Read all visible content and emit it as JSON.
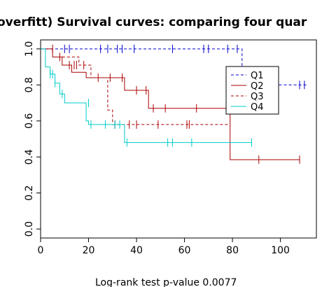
{
  "chart_data": {
    "type": "line",
    "title": "overfitt) Survival curves: comparing four quar",
    "xlabel": "",
    "ylabel": "",
    "footnote": "Log-rank test p-value  0.0077",
    "xlim": [
      0,
      115
    ],
    "ylim": [
      -0.05,
      1.05
    ],
    "x_ticks": [
      0,
      20,
      40,
      60,
      80,
      100
    ],
    "y_ticks": [
      0.0,
      0.2,
      0.4,
      0.6,
      0.8,
      1.0
    ],
    "x_tick_labels": [
      "0",
      "20",
      "40",
      "60",
      "80",
      "100"
    ],
    "y_tick_labels": [
      "0.0",
      "0.2",
      "0.4",
      "0.6",
      "0.8",
      "1.0"
    ],
    "grid": false,
    "legend_position": "top-right",
    "series": [
      {
        "name": "Q1",
        "color": "#0000cc",
        "dash": "dashed",
        "steps": [
          [
            0,
            1.0
          ],
          [
            84,
            1.0
          ],
          [
            84,
            0.8
          ],
          [
            111,
            0.8
          ]
        ],
        "censor_x": [
          10,
          12,
          25,
          28,
          32,
          34,
          39,
          55,
          68,
          70,
          78,
          82,
          108,
          110
        ],
        "censor_y": [
          1.0,
          1.0,
          1.0,
          1.0,
          1.0,
          1.0,
          1.0,
          1.0,
          1.0,
          1.0,
          1.0,
          1.0,
          0.8,
          0.8
        ]
      },
      {
        "name": "Q2",
        "color": "#aa0000",
        "dash": "solid",
        "steps": [
          [
            0,
            1.0
          ],
          [
            5,
            1.0
          ],
          [
            5,
            0.955
          ],
          [
            9,
            0.955
          ],
          [
            9,
            0.91
          ],
          [
            13,
            0.91
          ],
          [
            13,
            0.87
          ],
          [
            19,
            0.87
          ],
          [
            19,
            0.84
          ],
          [
            35,
            0.84
          ],
          [
            35,
            0.77
          ],
          [
            45,
            0.77
          ],
          [
            45,
            0.67
          ],
          [
            70,
            0.67
          ],
          [
            70,
            0.67
          ],
          [
            79,
            0.67
          ],
          [
            79,
            0.58
          ],
          [
            79,
            0.385
          ],
          [
            108,
            0.385
          ]
        ],
        "censor_x": [
          5,
          8,
          14,
          18,
          24,
          29,
          34,
          40,
          44,
          47,
          52,
          65,
          91,
          108
        ],
        "censor_y": [
          1.0,
          0.955,
          0.91,
          0.91,
          0.84,
          0.84,
          0.84,
          0.77,
          0.77,
          0.67,
          0.67,
          0.67,
          0.385,
          0.385
        ]
      },
      {
        "name": "Q3",
        "color": "#aa0000",
        "dash": "dashed",
        "steps": [
          [
            9,
            0.955
          ],
          [
            16,
            0.955
          ],
          [
            16,
            0.91
          ],
          [
            21,
            0.91
          ],
          [
            21,
            0.84
          ],
          [
            28,
            0.84
          ],
          [
            28,
            0.66
          ],
          [
            30,
            0.66
          ],
          [
            30,
            0.58
          ],
          [
            79,
            0.58
          ]
        ],
        "censor_x": [
          12,
          15,
          31,
          37,
          40,
          49,
          61,
          62
        ],
        "censor_y": [
          0.91,
          0.91,
          0.58,
          0.58,
          0.58,
          0.58,
          0.58,
          0.58
        ]
      },
      {
        "name": "Q4",
        "color": "#00cccc",
        "dash": "solid",
        "steps": [
          [
            0,
            1.0
          ],
          [
            2,
            1.0
          ],
          [
            2,
            0.9
          ],
          [
            4,
            0.9
          ],
          [
            4,
            0.86
          ],
          [
            6,
            0.86
          ],
          [
            6,
            0.81
          ],
          [
            8,
            0.81
          ],
          [
            8,
            0.75
          ],
          [
            10,
            0.75
          ],
          [
            10,
            0.7
          ],
          [
            19,
            0.7
          ],
          [
            19,
            0.6
          ],
          [
            20,
            0.6
          ],
          [
            20,
            0.58
          ],
          [
            35,
            0.58
          ],
          [
            35,
            0.48
          ],
          [
            88,
            0.48
          ]
        ],
        "censor_x": [
          4,
          5,
          6,
          9,
          20,
          21,
          27,
          31,
          33,
          36,
          53,
          55,
          63,
          88
        ],
        "censor_y": [
          0.86,
          0.86,
          0.81,
          0.75,
          0.7,
          0.58,
          0.58,
          0.58,
          0.58,
          0.48,
          0.48,
          0.48,
          0.48,
          0.48
        ]
      }
    ]
  }
}
